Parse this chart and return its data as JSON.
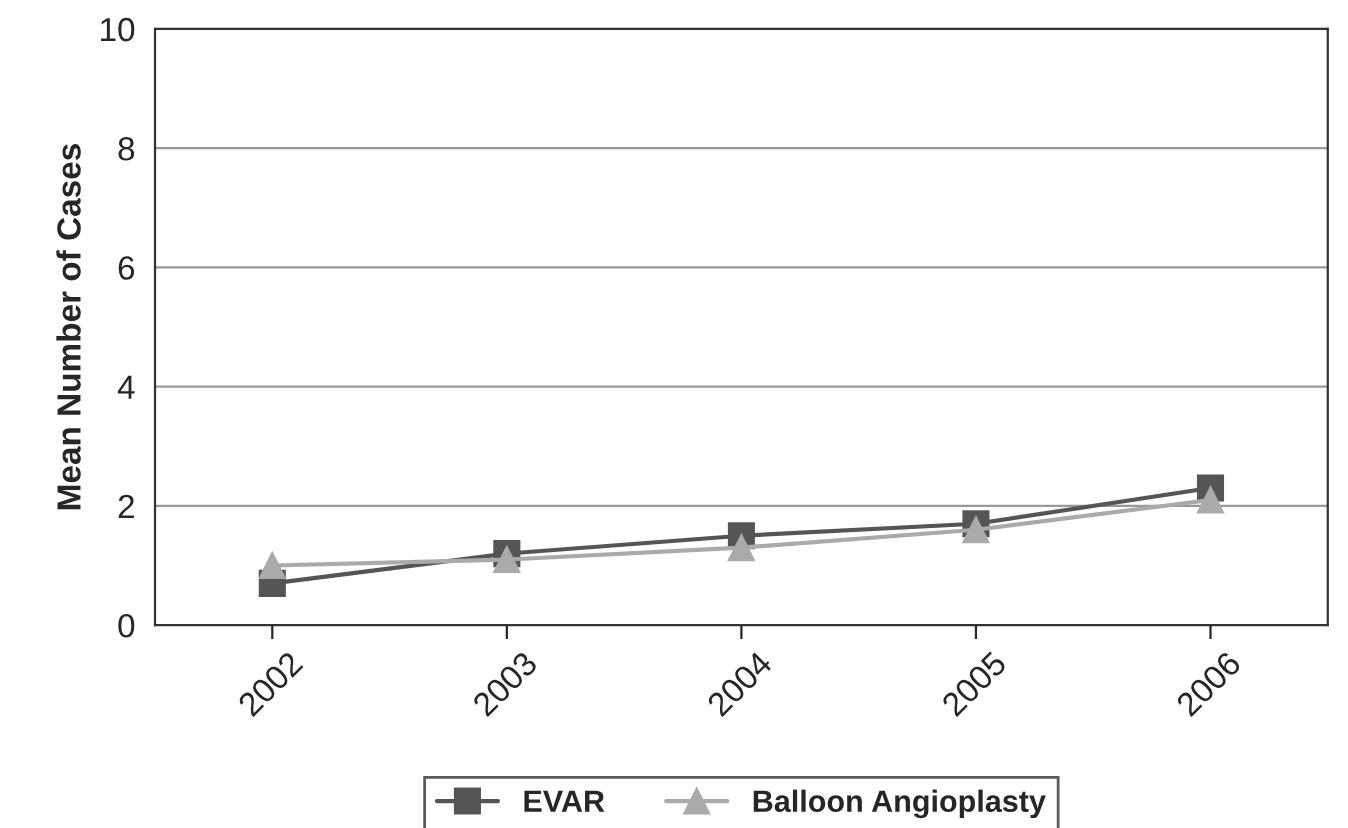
{
  "chart_data": {
    "type": "line",
    "ylabel": "Mean Number of Cases",
    "categories": [
      "2002",
      "2003",
      "2004",
      "2005",
      "2006"
    ],
    "series": [
      {
        "name": "EVAR",
        "color": "#555555",
        "marker": "square",
        "values": [
          0.7,
          1.2,
          1.5,
          1.7,
          2.3
        ]
      },
      {
        "name": "Balloon Angioplasty",
        "color": "#aaaaaa",
        "marker": "triangle",
        "values": [
          1.0,
          1.1,
          1.3,
          1.6,
          2.1
        ]
      }
    ],
    "ylim": [
      0,
      10
    ],
    "yticks": [
      0,
      2,
      4,
      6,
      8,
      10
    ],
    "grid": "y",
    "legend": "bottom",
    "line_style": "solid"
  }
}
